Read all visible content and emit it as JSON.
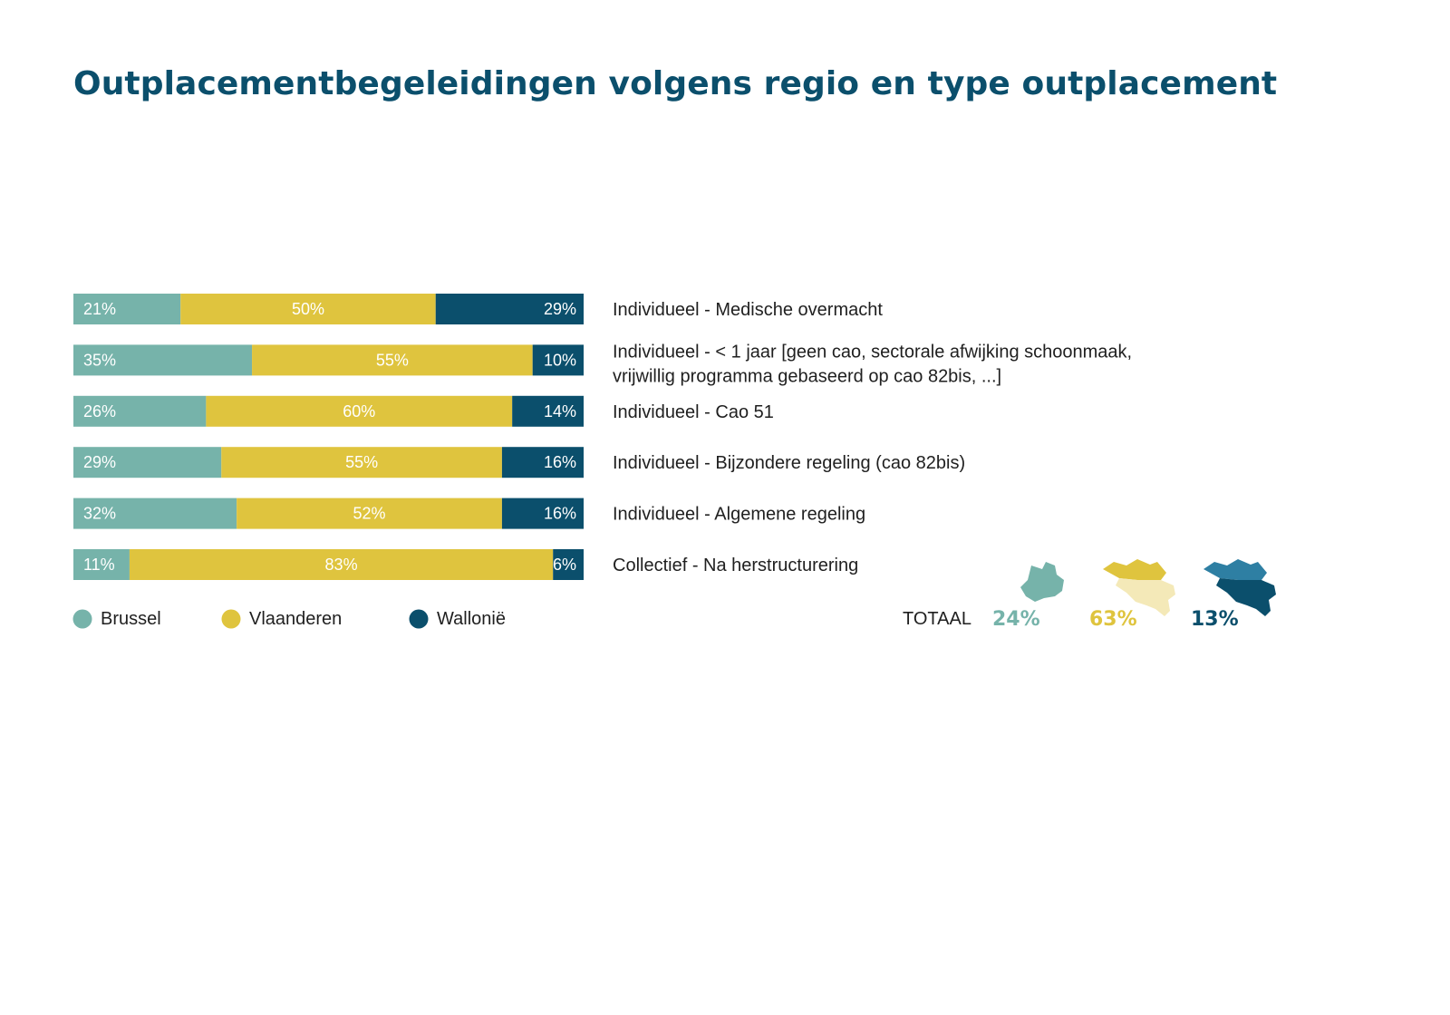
{
  "chart_data": {
    "type": "bar",
    "orientation": "horizontal-stacked-percent",
    "title": "Outplacementbegeleidingen volgens regio en type outplacement",
    "legend_position": "bottom-left",
    "series": [
      {
        "name": "Brussel",
        "color": "#76b3aa",
        "values": [
          21,
          35,
          26,
          29,
          32,
          11
        ]
      },
      {
        "name": "Vlaanderen",
        "color": "#dfc43e",
        "values": [
          50,
          55,
          60,
          55,
          52,
          83
        ]
      },
      {
        "name": "Wallonië",
        "color": "#0b4f6c",
        "values": [
          29,
          10,
          14,
          16,
          16,
          6
        ]
      }
    ],
    "data_labels": [
      [
        "21%",
        "50%",
        "29%"
      ],
      [
        "35%",
        "55%",
        "10%"
      ],
      [
        "26%",
        "60%",
        "14%"
      ],
      [
        "29%",
        "55%",
        "16%"
      ],
      [
        "32%",
        "52%",
        "16%"
      ],
      [
        "11%",
        "83%",
        "6%"
      ]
    ],
    "categories": [
      [
        "Individueel - Medische overmacht"
      ],
      [
        "Individueel - < 1 jaar [geen cao, sectorale afwijking schoonmaak,",
        "vrijwillig programma gebaseerd op cao 82bis, ...]"
      ],
      [
        "Individueel - Cao 51"
      ],
      [
        "Individueel - Bijzondere regeling (cao 82bis)"
      ],
      [
        "Individueel - Algemene regeling"
      ],
      [
        "Collectief - Na herstructurering"
      ]
    ],
    "totals": {
      "label": "TOTAAL",
      "items": [
        {
          "region": "Brussel",
          "value": "24%",
          "color": "#76b3aa",
          "icon": "brussels-map-icon"
        },
        {
          "region": "Vlaanderen",
          "value": "63%",
          "color": "#dfc43e",
          "icon": "flanders-map-icon"
        },
        {
          "region": "Wallonië",
          "value": "13%",
          "color": "#0b4f6c",
          "icon": "wallonia-map-icon"
        }
      ]
    }
  }
}
